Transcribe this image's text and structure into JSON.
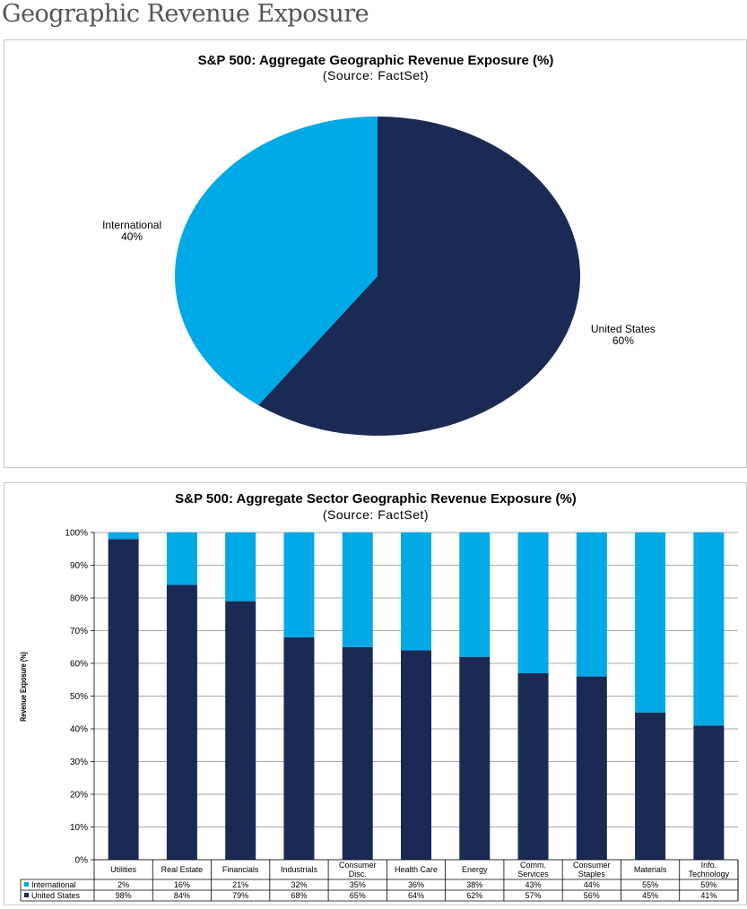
{
  "page_heading": "Geographic Revenue Exposure",
  "colors": {
    "united_states": "#1a2a55",
    "international": "#00a9e6"
  },
  "chart_data": [
    {
      "type": "pie",
      "title": "S&P 500: Aggregate Geographic Revenue Exposure (%)",
      "subtitle": "(Source: FactSet)",
      "slices": [
        {
          "label": "United States",
          "value": 60,
          "value_label": "60%"
        },
        {
          "label": "International",
          "value": 40,
          "value_label": "40%"
        }
      ]
    },
    {
      "type": "bar",
      "stacked": true,
      "title": "S&P 500: Aggregate Sector Geographic Revenue Exposure (%)",
      "subtitle": "(Source: FactSet)",
      "ylabel": "Revenue Exposure (%)",
      "ylim": [
        0,
        100
      ],
      "y_ticks": [
        "0%",
        "10%",
        "20%",
        "30%",
        "40%",
        "50%",
        "60%",
        "70%",
        "80%",
        "90%",
        "100%"
      ],
      "categories": [
        "Utilities",
        "Real Estate",
        "Financials",
        "Industrials",
        "Consumer Disc.",
        "Health Care",
        "Energy",
        "Comm. Services",
        "Consumer Staples",
        "Materials",
        "Info. Technology"
      ],
      "series": [
        {
          "name": "International",
          "values": [
            2,
            16,
            21,
            32,
            35,
            36,
            38,
            43,
            44,
            55,
            59
          ],
          "labels": [
            "2%",
            "16%",
            "21%",
            "32%",
            "35%",
            "36%",
            "38%",
            "43%",
            "44%",
            "55%",
            "59%"
          ]
        },
        {
          "name": "United States",
          "values": [
            98,
            84,
            79,
            68,
            65,
            64,
            62,
            57,
            56,
            45,
            41
          ],
          "labels": [
            "98%",
            "84%",
            "79%",
            "68%",
            "65%",
            "64%",
            "62%",
            "57%",
            "56%",
            "45%",
            "41%"
          ]
        }
      ],
      "grid": true,
      "legend": "data-table"
    }
  ]
}
